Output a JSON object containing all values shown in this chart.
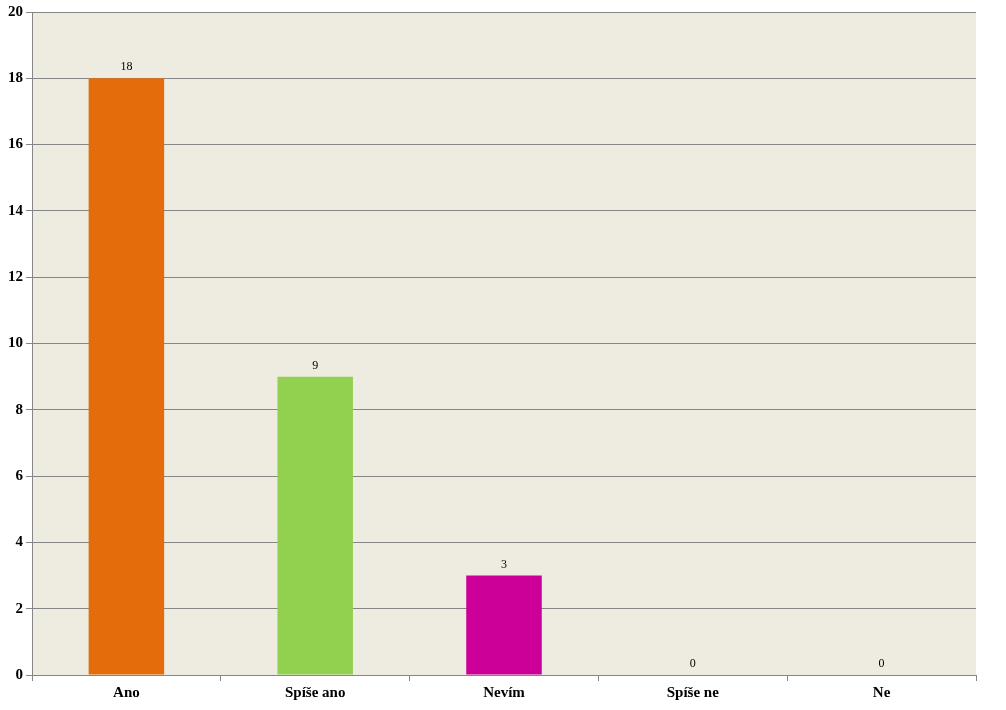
{
  "chart_data": {
    "type": "bar",
    "categories": [
      "Ano",
      "Spíše ano",
      "Nevím",
      "Spíše ne",
      "Ne"
    ],
    "values": [
      18,
      9,
      3,
      0,
      0
    ],
    "colors": [
      "#e46c0a",
      "#92d050",
      "#cc0099",
      "#4f81bd",
      "#c0504d"
    ],
    "ylim": [
      0,
      20
    ],
    "yticks": [
      0,
      2,
      4,
      6,
      8,
      10,
      12,
      14,
      16,
      18,
      20
    ],
    "grid": "y",
    "legend": false,
    "data_labels": true
  }
}
